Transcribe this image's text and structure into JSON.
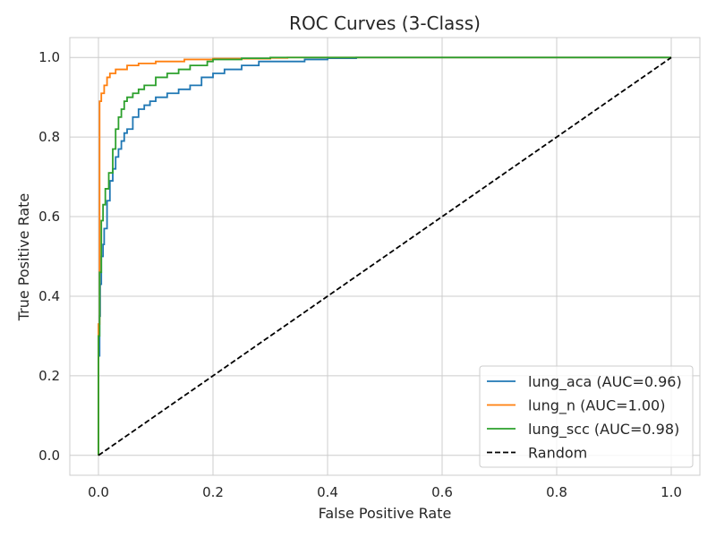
{
  "chart_data": {
    "type": "line",
    "title": "ROC Curves (3-Class)",
    "xlabel": "False Positive Rate",
    "ylabel": "True Positive Rate",
    "xlim": [
      -0.05,
      1.05
    ],
    "ylim": [
      -0.05,
      1.05
    ],
    "xticks": [
      0.0,
      0.2,
      0.4,
      0.6,
      0.8,
      1.0
    ],
    "yticks": [
      0.0,
      0.2,
      0.4,
      0.6,
      0.8,
      1.0
    ],
    "xtick_labels": [
      "0.0",
      "0.2",
      "0.4",
      "0.6",
      "0.8",
      "1.0"
    ],
    "ytick_labels": [
      "0.0",
      "0.2",
      "0.4",
      "0.6",
      "0.8",
      "1.0"
    ],
    "grid": true,
    "legend_position": "lower-right",
    "series": [
      {
        "name": "lung_aca (AUC=0.96)",
        "color": "#1f77b4",
        "style": "solid",
        "x": [
          0.0,
          0.0,
          0.002,
          0.003,
          0.005,
          0.008,
          0.01,
          0.015,
          0.02,
          0.025,
          0.03,
          0.035,
          0.04,
          0.045,
          0.05,
          0.06,
          0.07,
          0.08,
          0.09,
          0.1,
          0.12,
          0.14,
          0.16,
          0.18,
          0.2,
          0.22,
          0.25,
          0.28,
          0.3,
          0.33,
          0.36,
          0.4,
          0.45,
          0.6,
          1.0
        ],
        "y": [
          0.0,
          0.25,
          0.35,
          0.43,
          0.5,
          0.53,
          0.57,
          0.64,
          0.69,
          0.72,
          0.75,
          0.77,
          0.79,
          0.81,
          0.82,
          0.85,
          0.87,
          0.88,
          0.89,
          0.9,
          0.91,
          0.92,
          0.93,
          0.95,
          0.96,
          0.97,
          0.98,
          0.99,
          0.99,
          0.99,
          0.995,
          0.998,
          1.0,
          1.0,
          1.0
        ]
      },
      {
        "name": "lung_n (AUC=1.00)",
        "color": "#ff7f0e",
        "style": "solid",
        "x": [
          0.0,
          0.0,
          0.002,
          0.005,
          0.01,
          0.015,
          0.02,
          0.03,
          0.05,
          0.07,
          0.1,
          0.15,
          0.2,
          0.3,
          0.33,
          1.0
        ],
        "y": [
          0.0,
          0.33,
          0.89,
          0.91,
          0.93,
          0.95,
          0.96,
          0.97,
          0.98,
          0.985,
          0.99,
          0.995,
          0.997,
          0.999,
          1.0,
          1.0
        ]
      },
      {
        "name": "lung_scc (AUC=0.98)",
        "color": "#2ca02c",
        "style": "solid",
        "x": [
          0.0,
          0.0,
          0.002,
          0.005,
          0.008,
          0.012,
          0.018,
          0.025,
          0.03,
          0.035,
          0.04,
          0.045,
          0.05,
          0.06,
          0.07,
          0.08,
          0.1,
          0.12,
          0.14,
          0.16,
          0.19,
          0.2,
          0.25,
          0.3,
          1.0
        ],
        "y": [
          0.0,
          0.3,
          0.46,
          0.59,
          0.63,
          0.67,
          0.71,
          0.77,
          0.82,
          0.85,
          0.87,
          0.89,
          0.9,
          0.91,
          0.92,
          0.93,
          0.95,
          0.96,
          0.97,
          0.98,
          0.99,
          0.995,
          0.998,
          1.0,
          1.0
        ]
      },
      {
        "name": "Random",
        "color": "#000000",
        "style": "dashed",
        "x": [
          0.0,
          1.0
        ],
        "y": [
          0.0,
          1.0
        ]
      }
    ]
  }
}
